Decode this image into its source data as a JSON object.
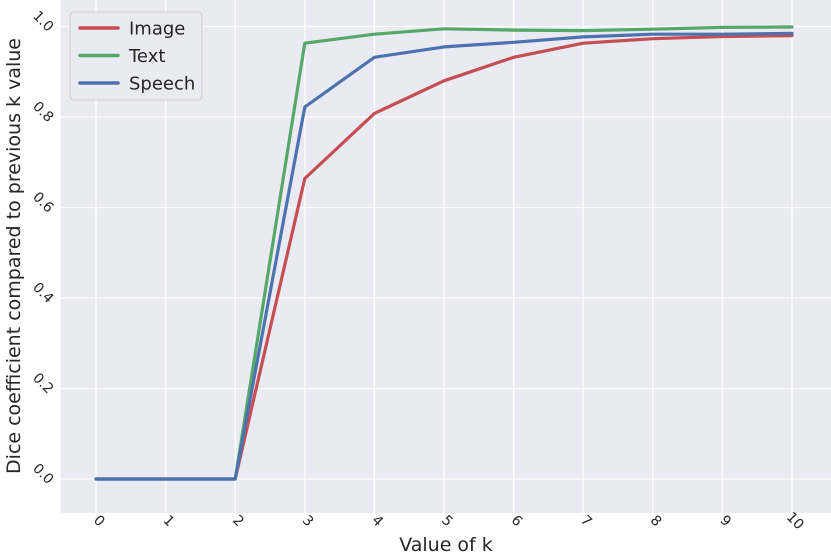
{
  "chart_data": {
    "type": "line",
    "title": "",
    "xlabel": "Value of k",
    "ylabel": "Dice coefficient compared to previous k value",
    "x": [
      0,
      1,
      2,
      3,
      4,
      5,
      6,
      7,
      8,
      9,
      10
    ],
    "x_tick_labels": [
      "0",
      "1",
      "2",
      "3",
      "4",
      "5",
      "6",
      "7",
      "8",
      "9",
      "10"
    ],
    "y_tick_values": [
      0.0,
      0.2,
      0.4,
      0.6,
      0.8,
      1.0
    ],
    "y_tick_labels": [
      "0.0",
      "0.2",
      "0.4",
      "0.6",
      "0.8",
      "1.0"
    ],
    "xlim": [
      -0.5,
      10.5
    ],
    "ylim": [
      -0.05,
      1.02
    ],
    "grid": true,
    "background": "#eaeaf2",
    "grid_color": "#ffffff",
    "legend_position": "top-left",
    "series": [
      {
        "name": "Image",
        "color": "#c44e52",
        "values": [
          0.0,
          0.0,
          0.0,
          0.664,
          0.808,
          0.88,
          0.932,
          0.963,
          0.973,
          0.978,
          0.98
        ]
      },
      {
        "name": "Text",
        "color": "#55a868",
        "values": [
          0.0,
          0.0,
          0.0,
          0.963,
          0.983,
          0.995,
          0.992,
          0.991,
          0.994,
          0.998,
          0.999
        ]
      },
      {
        "name": "Speech",
        "color": "#4c72b0",
        "values": [
          0.0,
          0.0,
          0.0,
          0.822,
          0.932,
          0.955,
          0.965,
          0.977,
          0.983,
          0.983,
          0.985
        ]
      }
    ]
  }
}
